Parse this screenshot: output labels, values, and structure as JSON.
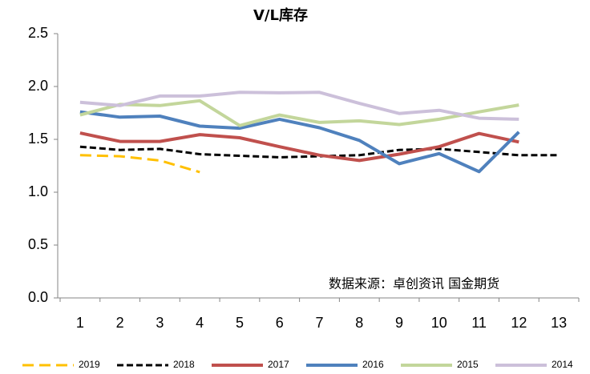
{
  "chart_data": {
    "type": "line",
    "title": "V/L库存",
    "annotation": "数据来源：卓创资讯 国金期货",
    "categories": [
      "1",
      "2",
      "3",
      "4",
      "5",
      "6",
      "7",
      "8",
      "9",
      "10",
      "11",
      "12",
      "13"
    ],
    "ylim": [
      0,
      2.5
    ],
    "yticks": [
      {
        "value": 0,
        "label": "0.0"
      },
      0.5,
      {
        "value": 1,
        "label": "1.0"
      },
      1.5,
      {
        "value": 2,
        "label": "2.0"
      },
      2.5
    ],
    "legend": "bottom",
    "series": [
      {
        "name": "2019",
        "color": "#FFC000",
        "dashed": true,
        "values": [
          1.35,
          1.34,
          1.3,
          1.19,
          null,
          null,
          null,
          null,
          null,
          null,
          null,
          null,
          null
        ]
      },
      {
        "name": "2018",
        "color": "#000000",
        "dashed": true,
        "values": [
          1.43,
          1.4,
          1.41,
          1.36,
          1.345,
          1.33,
          1.34,
          1.35,
          1.4,
          1.41,
          1.38,
          1.35,
          1.35
        ]
      },
      {
        "name": "2017",
        "color": "#C0504D",
        "values": [
          1.56,
          1.48,
          1.48,
          1.545,
          1.515,
          1.43,
          1.35,
          1.3,
          1.36,
          1.43,
          1.555,
          1.475,
          null
        ]
      },
      {
        "name": "2016",
        "color": "#4F81BD",
        "values": [
          1.76,
          1.71,
          1.72,
          1.625,
          1.605,
          1.69,
          1.61,
          1.49,
          1.27,
          1.365,
          1.195,
          1.57,
          null
        ]
      },
      {
        "name": "2015",
        "color": "#C3D69B",
        "values": [
          1.73,
          1.83,
          1.82,
          1.865,
          1.63,
          1.73,
          1.66,
          1.675,
          1.64,
          1.69,
          1.76,
          1.825,
          null
        ]
      },
      {
        "name": "2014",
        "color": "#CCC0DA",
        "values": [
          1.85,
          1.82,
          1.91,
          1.91,
          1.945,
          1.94,
          1.945,
          1.84,
          1.745,
          1.775,
          1.7,
          1.69,
          null
        ]
      }
    ]
  }
}
